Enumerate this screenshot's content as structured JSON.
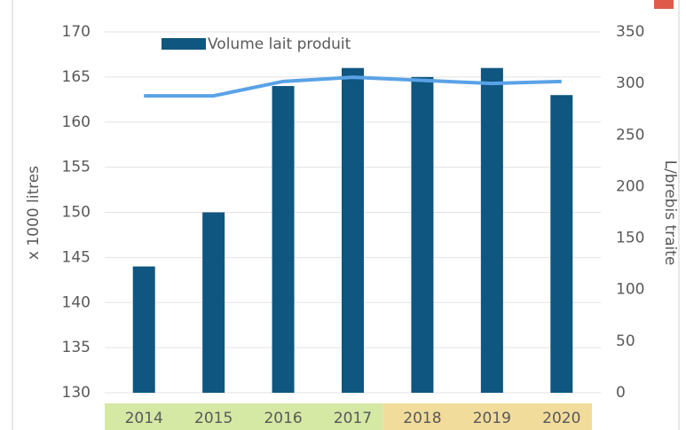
{
  "chart_data": {
    "type": "bar",
    "categories": [
      "2014",
      "2015",
      "2016",
      "2017",
      "2018",
      "2019",
      "2020"
    ],
    "category_bands": [
      {
        "from": 0,
        "to": 3,
        "color": "#d5e8a4"
      },
      {
        "from": 4,
        "to": 6,
        "color": "#f1dc9c"
      }
    ],
    "series": [
      {
        "name": "Volume lait produit",
        "type": "bar",
        "color": "#0f5680",
        "values": [
          144,
          150,
          164,
          166,
          165,
          166,
          163
        ]
      },
      {
        "type": "line",
        "axis": "y2",
        "color": "#5aa2e6",
        "values": [
          288,
          288,
          302,
          306,
          303,
          300,
          302
        ]
      }
    ],
    "ylabel": "x 1000 litres",
    "y2label": "L/brebis traite",
    "ylim": [
      130,
      170
    ],
    "yticks": [
      130,
      135,
      140,
      145,
      150,
      155,
      160,
      165,
      170
    ],
    "y2lim": [
      0,
      350
    ],
    "y2ticks": [
      0,
      50,
      100,
      150,
      200,
      250,
      300,
      350
    ],
    "grid": true,
    "legend": "top-left"
  }
}
